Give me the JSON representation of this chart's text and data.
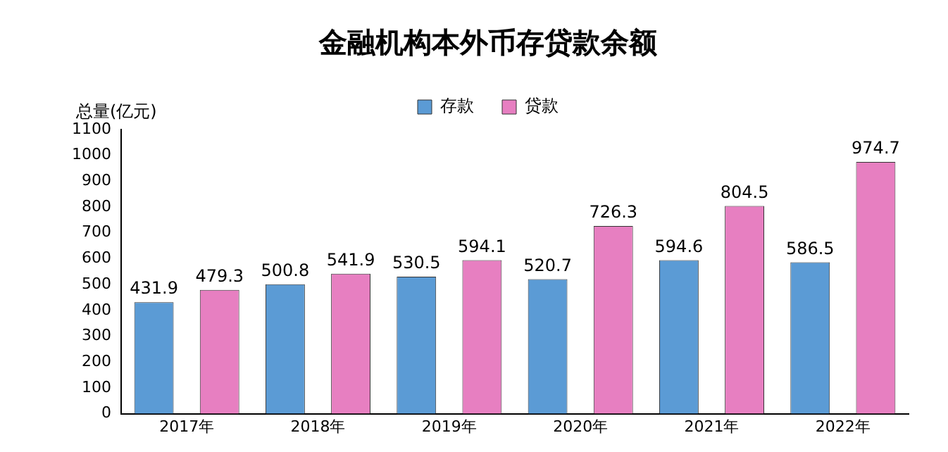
{
  "chart_data": {
    "type": "bar",
    "title": "金融机构本外币存贷款余额",
    "ylabel": "总量(亿元)",
    "categories": [
      "2017年",
      "2018年",
      "2019年",
      "2020年",
      "2021年",
      "2022年"
    ],
    "series": [
      {
        "name": "存款",
        "color": "#5b9bd5",
        "values": [
          431.9,
          500.8,
          530.5,
          520.7,
          594.6,
          586.5
        ]
      },
      {
        "name": "贷款",
        "color": "#e77fc1",
        "values": [
          479.3,
          541.9,
          594.1,
          726.3,
          804.5,
          974.7
        ]
      }
    ],
    "ylim": [
      0,
      1100
    ],
    "yticks": [
      0,
      100,
      200,
      300,
      400,
      500,
      600,
      700,
      800,
      900,
      1000,
      1100
    ],
    "grid": false,
    "legend": "top",
    "data_labels": true
  }
}
